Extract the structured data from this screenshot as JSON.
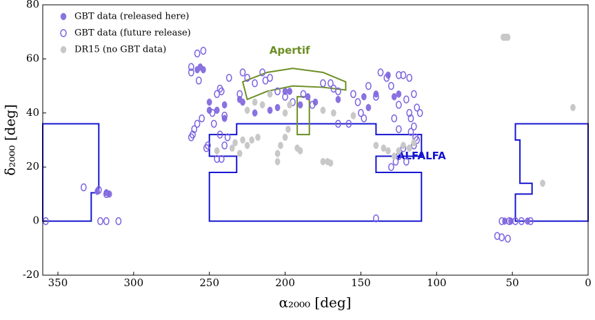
{
  "chart_data": {
    "type": "scatter",
    "x_label": "α₂₀₀₀ [deg]",
    "y_label": "δ₂₀₀₀ [deg]",
    "xlim": [
      360,
      0
    ],
    "ylim": [
      -20,
      80
    ],
    "xticks": [
      350,
      300,
      250,
      200,
      150,
      100,
      50,
      0
    ],
    "yticks": [
      -20,
      0,
      20,
      40,
      60,
      80
    ],
    "legend": "upper left",
    "series": [
      {
        "name": "GBT data (released here)",
        "color": "#8a72e0",
        "marker": "filled",
        "x": [
          256,
          258,
          254,
          250,
          250,
          245,
          240,
          240,
          230,
          228,
          220,
          210,
          205,
          200,
          197,
          190,
          185,
          180,
          165,
          148,
          145,
          140,
          132,
          128,
          125,
          324,
          318,
          316,
          55,
          51,
          40
        ],
        "values": [
          57,
          56,
          56,
          41,
          44,
          41,
          43,
          38,
          45,
          44,
          40,
          41,
          42,
          48,
          48,
          43,
          46,
          44,
          45,
          46,
          42,
          47,
          54,
          46,
          47,
          11,
          10.5,
          10,
          0,
          0,
          0
        ]
      },
      {
        "name": "GBT data (future release)",
        "color": "#7b62e0",
        "marker": "open",
        "x": [
          358,
          333,
          323,
          318,
          322,
          318,
          310,
          254,
          258,
          262,
          262,
          257,
          255,
          258,
          260,
          261,
          262,
          252,
          251,
          247,
          248,
          245,
          243,
          237,
          242,
          240,
          238,
          243,
          245,
          242,
          240,
          230,
          228,
          225,
          220,
          215,
          213,
          210,
          205,
          200,
          195,
          188,
          182,
          175,
          170,
          168,
          165,
          155,
          148,
          150,
          145,
          152,
          158,
          165,
          140,
          137,
          133,
          130,
          125,
          122,
          118,
          125,
          120,
          115,
          118,
          117,
          113,
          111,
          115,
          117,
          114,
          115,
          113,
          122,
          125,
          127,
          130,
          120,
          125,
          128,
          140,
          60,
          57,
          53,
          57,
          52,
          48,
          44,
          38
        ],
        "values": [
          0,
          12.5,
          11.5,
          10,
          0,
          0,
          0,
          63,
          62,
          57,
          55,
          52,
          38,
          36,
          34,
          32,
          31,
          27,
          28,
          36,
          40,
          47,
          49,
          53,
          48,
          39,
          31,
          32,
          23,
          23,
          28,
          47,
          55,
          53,
          51,
          55,
          52,
          53,
          48,
          46,
          44,
          47,
          43,
          51,
          51,
          49,
          48,
          47,
          38,
          40,
          50,
          44,
          36,
          36,
          46,
          55,
          53,
          50,
          54,
          54,
          53,
          43,
          45,
          47,
          40,
          38,
          42,
          40,
          35,
          33,
          31,
          28,
          30,
          27,
          24,
          22,
          20,
          22,
          34,
          38,
          1,
          -5.5,
          -6,
          -6.5,
          0,
          0,
          0,
          0,
          0
        ]
      },
      {
        "name": "DR15 (no GBT data)",
        "color": "#c8c8c8",
        "marker": "filled",
        "x": [
          56,
          55,
          54,
          53,
          10,
          30,
          235,
          233,
          228,
          225,
          222,
          218,
          230,
          205,
          205,
          203,
          200,
          198,
          192,
          190,
          175,
          172,
          170,
          140,
          135,
          132,
          128,
          125,
          122,
          118,
          115,
          245,
          225,
          220,
          215,
          210,
          200,
          197,
          175,
          168,
          155
        ],
        "values": [
          68,
          68,
          68,
          68,
          42,
          14,
          27,
          29,
          30,
          28,
          30,
          31,
          25,
          22,
          25,
          28,
          31,
          34,
          27,
          26,
          22,
          22,
          21.5,
          28,
          27,
          26,
          24,
          26,
          28,
          27,
          29,
          26,
          41,
          44,
          43,
          47,
          40,
          43,
          41,
          40,
          39
        ]
      }
    ],
    "regions": [
      {
        "name": "ALFALFA",
        "color": "#1414d0",
        "polygons": [
          {
            "x": [
              360,
              323,
              323,
              328,
              328,
              360
            ],
            "y": [
              36,
              36,
              10.5,
              10.5,
              0,
              0
            ]
          },
          {
            "x": [
              110,
              250,
              250,
              232,
              232,
              250,
              250,
              232,
              232,
              140,
              140,
              110,
              110,
              140,
              140,
              110
            ],
            "y": [
              0,
              0,
              18,
              18,
              24,
              24,
              32,
              32,
              36,
              36,
              32,
              32,
              24,
              24,
              18,
              18
            ]
          },
          {
            "x": [
              0,
              48,
              48,
              45,
              45,
              37,
              37,
              48,
              48,
              0
            ],
            "y": [
              36,
              36,
              30,
              30,
              14,
              14,
              10,
              10,
              0,
              0
            ]
          }
        ]
      },
      {
        "name": "Apertif",
        "color": "#6b8e23",
        "polygons": [
          {
            "x": [
              228,
              212,
              195,
              175,
              160,
              160,
              175,
              195,
              212,
              225
            ],
            "y": [
              51.5,
              55,
              56.5,
              55,
              51.5,
              48.5,
              49.5,
              50,
              48,
              45
            ]
          },
          {
            "x": [
              192,
              184,
              184,
              192
            ],
            "y": [
              46,
              46,
              32,
              32
            ]
          }
        ]
      }
    ]
  }
}
